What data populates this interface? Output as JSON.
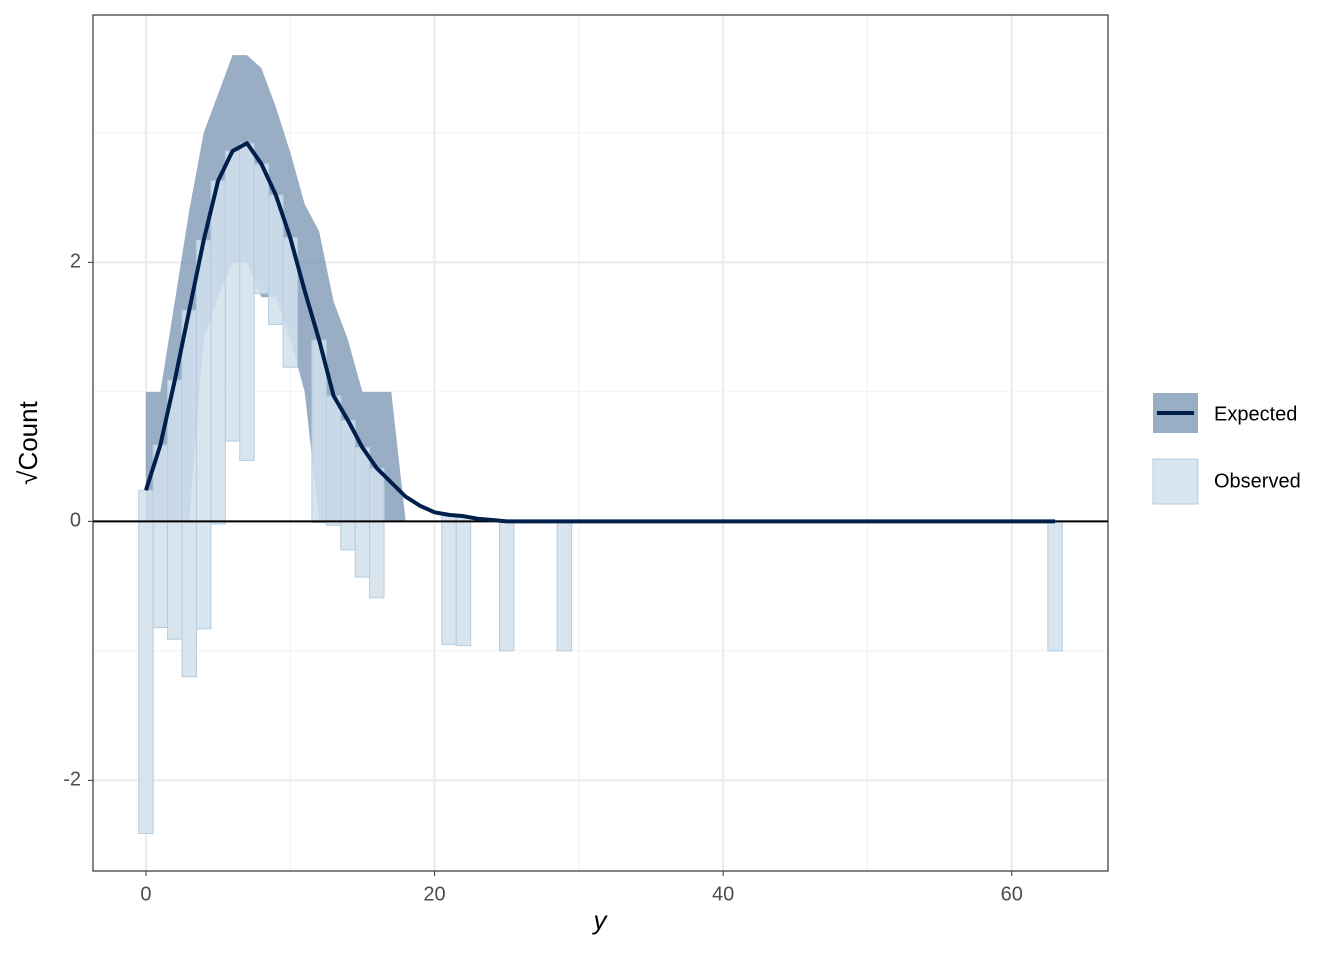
{
  "chart_data": {
    "type": "rootogram",
    "x_label": "y",
    "y_label": "√Count",
    "x": [
      0,
      1,
      2,
      3,
      4,
      5,
      6,
      7,
      8,
      9,
      10,
      11,
      12,
      13,
      14,
      15,
      16,
      17,
      18,
      19,
      20,
      21,
      22,
      23,
      24,
      25,
      26,
      27,
      28,
      29,
      63
    ],
    "series": [
      {
        "name": "Expected",
        "color": "#011f4b",
        "band_color": "#6d8aac",
        "values": [
          0.24,
          0.59,
          1.09,
          1.63,
          2.17,
          2.63,
          2.86,
          2.92,
          2.76,
          2.52,
          2.19,
          1.78,
          1.4,
          0.97,
          0.78,
          0.57,
          0.41,
          0.3,
          0.19,
          0.12,
          0.07,
          0.05,
          0.04,
          0.02,
          0.01,
          0,
          0,
          0,
          0,
          0,
          0
        ],
        "upper": [
          1,
          1,
          1.7,
          2.4,
          3.0,
          3.3,
          3.6,
          3.6,
          3.5,
          3.2,
          2.85,
          2.45,
          2.24,
          1.7,
          1.4,
          1.0,
          1.0,
          1.0,
          0,
          0,
          0,
          0,
          0,
          0,
          0,
          0,
          0,
          0,
          0,
          0,
          0
        ],
        "lower": [
          0,
          0,
          0,
          0,
          1.41,
          1.73,
          2,
          2,
          1.73,
          1.73,
          1.41,
          1,
          0,
          0,
          0,
          0,
          0,
          0,
          0,
          0,
          0,
          0,
          0,
          0,
          0,
          0,
          0,
          0,
          0,
          0,
          0
        ]
      },
      {
        "name": "Observed",
        "color": "#d1e1ec",
        "values": [
          2.65,
          1.41,
          2,
          2.83,
          3,
          2.65,
          2.24,
          2.45,
          1,
          1,
          1,
          null,
          1.41,
          1,
          1,
          1,
          1,
          null,
          null,
          null,
          null,
          1,
          1,
          null,
          null,
          1,
          null,
          null,
          null,
          1,
          1
        ]
      }
    ],
    "xlim": [
      -3.67,
      66.67
    ],
    "ylim": [
      -2.7,
      3.91
    ],
    "xticks": [
      0,
      20,
      40,
      60
    ],
    "yticks": [
      -2,
      0,
      2
    ],
    "grid": true,
    "legend": "right"
  }
}
